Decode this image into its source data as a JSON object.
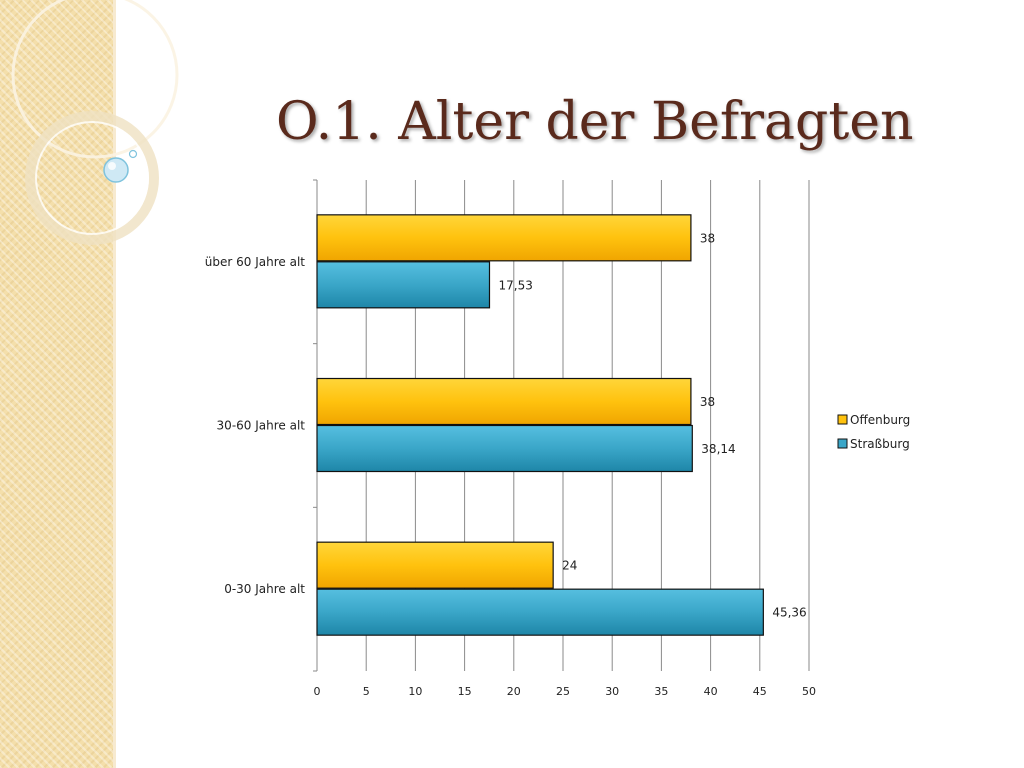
{
  "slide": {
    "title": "O.1. Alter der Befragten"
  },
  "chart_data": {
    "type": "bar",
    "orientation": "horizontal",
    "categories": [
      "über 60 Jahre alt",
      "30-60 Jahre alt",
      "0-30 Jahre alt"
    ],
    "series": [
      {
        "name": "Offenburg",
        "values": [
          38,
          38,
          24
        ],
        "labels": [
          "38",
          "38",
          "24"
        ],
        "color": "#ffc20e"
      },
      {
        "name": "Straßburg",
        "values": [
          17.53,
          38.14,
          45.36
        ],
        "labels": [
          "17,53",
          "38,14",
          "45,36"
        ],
        "color": "#3aa6c8"
      }
    ],
    "xlim": [
      0,
      50
    ],
    "xticks": [
      0,
      5,
      10,
      15,
      20,
      25,
      30,
      35,
      40,
      45,
      50
    ],
    "grid": true,
    "legend": "right"
  }
}
